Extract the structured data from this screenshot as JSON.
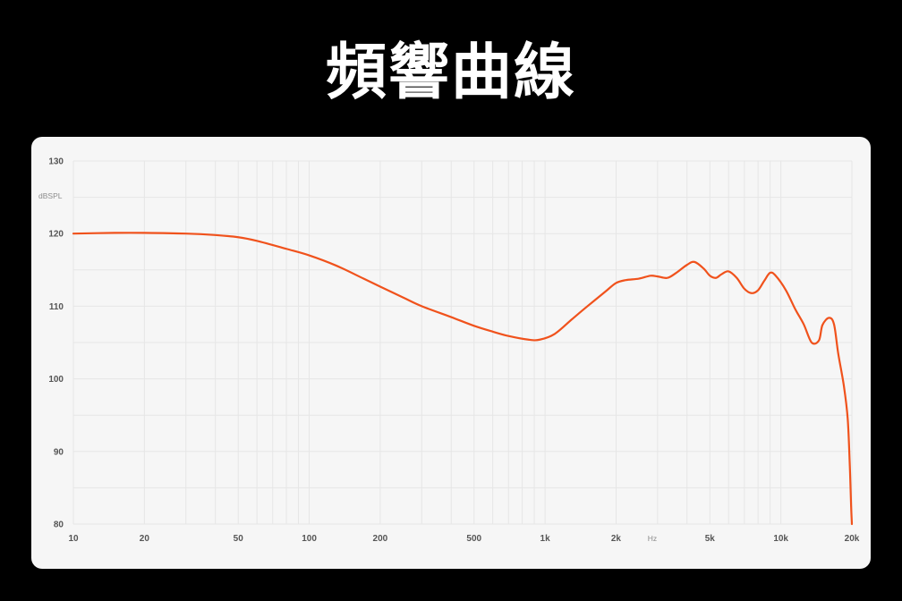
{
  "title": "頻響曲線",
  "colors": {
    "background": "#000000",
    "panel": "#f6f6f6",
    "curve": "#f0521c",
    "grid": "#e6e6e6",
    "tick_text": "#555555"
  },
  "chart_data": {
    "type": "line",
    "title": "頻響曲線",
    "xlabel": "Hz",
    "ylabel": "dBSPL",
    "xscale": "log",
    "xlim": [
      10,
      20000
    ],
    "ylim": [
      80,
      130
    ],
    "grid": true,
    "x_ticks": [
      {
        "value": 10,
        "label": "10"
      },
      {
        "value": 20,
        "label": "20"
      },
      {
        "value": 50,
        "label": "50"
      },
      {
        "value": 100,
        "label": "100"
      },
      {
        "value": 200,
        "label": "200"
      },
      {
        "value": 500,
        "label": "500"
      },
      {
        "value": 1000,
        "label": "1k"
      },
      {
        "value": 2000,
        "label": "2k"
      },
      {
        "value": 5000,
        "label": "5k"
      },
      {
        "value": 10000,
        "label": "10k"
      },
      {
        "value": 20000,
        "label": "20k"
      }
    ],
    "y_ticks": [
      {
        "value": 80,
        "label": "80"
      },
      {
        "value": 90,
        "label": "90"
      },
      {
        "value": 100,
        "label": "100"
      },
      {
        "value": 110,
        "label": "110"
      },
      {
        "value": 120,
        "label": "120"
      },
      {
        "value": 130,
        "label": "130"
      }
    ],
    "series": [
      {
        "color": "#f0521c",
        "points": [
          [
            10,
            120.0
          ],
          [
            15,
            120.1
          ],
          [
            20,
            120.1
          ],
          [
            30,
            120.0
          ],
          [
            40,
            119.8
          ],
          [
            50,
            119.5
          ],
          [
            60,
            119.0
          ],
          [
            80,
            117.9
          ],
          [
            100,
            117.0
          ],
          [
            130,
            115.6
          ],
          [
            170,
            113.8
          ],
          [
            200,
            112.7
          ],
          [
            250,
            111.2
          ],
          [
            300,
            110.0
          ],
          [
            400,
            108.5
          ],
          [
            500,
            107.3
          ],
          [
            600,
            106.5
          ],
          [
            700,
            105.9
          ],
          [
            850,
            105.4
          ],
          [
            950,
            105.4
          ],
          [
            1100,
            106.2
          ],
          [
            1300,
            108.2
          ],
          [
            1500,
            109.9
          ],
          [
            1800,
            112.0
          ],
          [
            2000,
            113.2
          ],
          [
            2200,
            113.6
          ],
          [
            2500,
            113.8
          ],
          [
            2800,
            114.2
          ],
          [
            3000,
            114.1
          ],
          [
            3300,
            113.9
          ],
          [
            3600,
            114.6
          ],
          [
            4000,
            115.7
          ],
          [
            4300,
            116.1
          ],
          [
            4700,
            115.2
          ],
          [
            5000,
            114.2
          ],
          [
            5300,
            113.9
          ],
          [
            5600,
            114.4
          ],
          [
            6000,
            114.8
          ],
          [
            6500,
            113.9
          ],
          [
            7000,
            112.4
          ],
          [
            7500,
            111.8
          ],
          [
            8000,
            112.2
          ],
          [
            8500,
            113.5
          ],
          [
            9000,
            114.6
          ],
          [
            9500,
            114.2
          ],
          [
            10500,
            112.2
          ],
          [
            11500,
            109.6
          ],
          [
            12500,
            107.5
          ],
          [
            13500,
            105.0
          ],
          [
            14500,
            105.3
          ],
          [
            15000,
            107.4
          ],
          [
            16000,
            108.4
          ],
          [
            16800,
            107.5
          ],
          [
            17500,
            103.5
          ],
          [
            18500,
            99.0
          ],
          [
            19200,
            94.5
          ],
          [
            19600,
            88.0
          ],
          [
            19850,
            82.5
          ],
          [
            20000,
            80.0
          ]
        ]
      }
    ]
  }
}
